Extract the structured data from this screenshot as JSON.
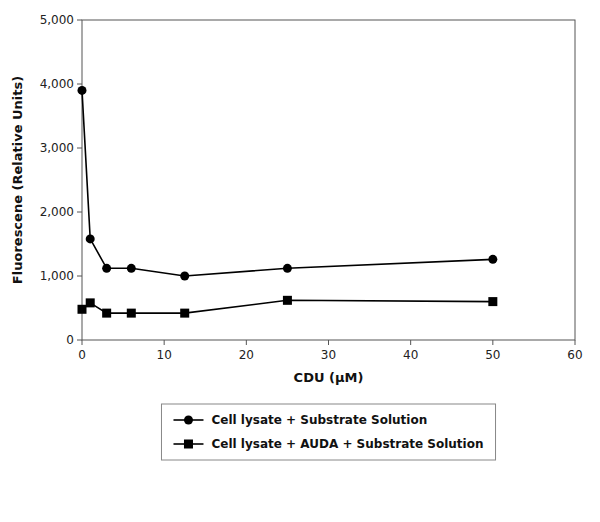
{
  "chart_data": {
    "type": "line",
    "xlabel": "CDU (μM)",
    "ylabel": "Fluorescene (Relative Units)",
    "x": [
      0,
      1,
      3,
      6,
      12.5,
      25,
      50
    ],
    "series": [
      {
        "name": "Cell lysate + Substrate Solution",
        "color": "#000000",
        "marker": "circle",
        "values": [
          3900,
          1580,
          1120,
          1120,
          1000,
          1120,
          1260
        ]
      },
      {
        "name": "Cell lysate + AUDA + Substrate Solution",
        "color": "#000000",
        "marker": "square",
        "values": [
          480,
          580,
          420,
          420,
          420,
          620,
          600
        ]
      }
    ],
    "xlim": [
      0,
      60
    ],
    "ylim": [
      0,
      5000
    ],
    "xticks": [
      0,
      10,
      20,
      30,
      40,
      50,
      60
    ],
    "yticks": [
      0,
      {
        "value": 1000,
        "label": "1,000"
      },
      {
        "value": 2000,
        "label": "2,000"
      },
      {
        "value": 3000,
        "label": "3,000"
      },
      {
        "value": 4000,
        "label": "4,000"
      },
      {
        "value": 5000,
        "label": "5,000"
      }
    ],
    "grid": false,
    "legend": "bottom"
  }
}
